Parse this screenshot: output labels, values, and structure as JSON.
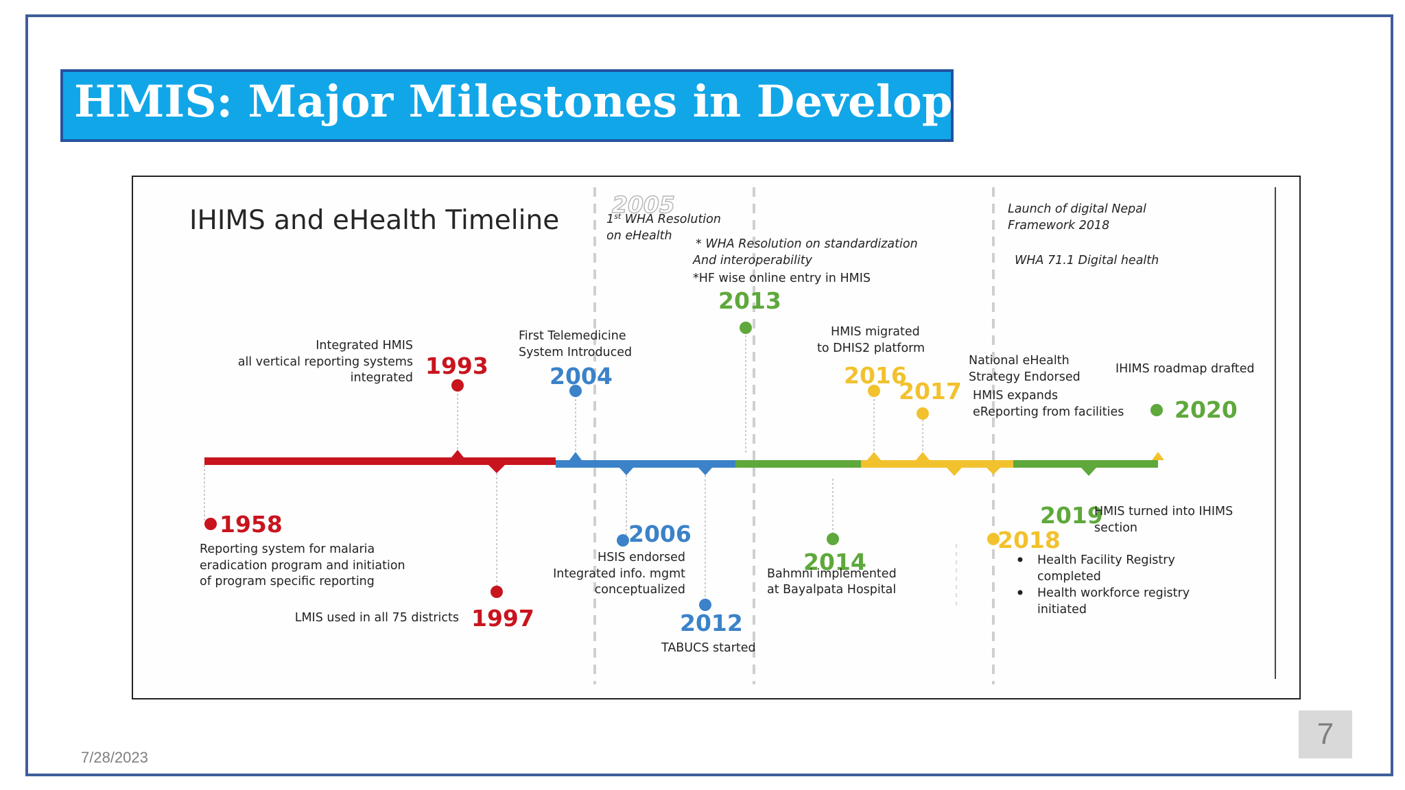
{
  "title": "HMIS: Major Milestones in Development",
  "date": "7/28/2023",
  "page_number": "7",
  "timeline": {
    "heading": "IHIMS and eHealth Timeline",
    "colors": {
      "red": "#c8141e",
      "blue": "#3b82c8",
      "green": "#5ea83c",
      "yellow": "#f2c12e",
      "ghost": "#cfcfcf"
    },
    "milestones": {
      "y1958": {
        "year": "1958",
        "lines": [
          "Reporting system for malaria",
          "eradication program and initiation",
          "of program specific reporting"
        ]
      },
      "y1993": {
        "year": "1993",
        "lines": [
          "Integrated HMIS",
          "all vertical reporting systems",
          "integrated"
        ]
      },
      "y1997": {
        "year": "1997",
        "lines": [
          "LMIS used in all 75 districts"
        ]
      },
      "y2004": {
        "year": "2004",
        "lines": [
          "First Telemedicine",
          "System Introduced"
        ]
      },
      "y2005": {
        "year": "2005",
        "sup": "st",
        "lines": [
          "1",
          " WHA Resolution",
          "on eHealth"
        ]
      },
      "y2006": {
        "year": "2006",
        "lines": [
          "HSIS endorsed",
          "Integrated info. mgmt",
          "conceptualized"
        ]
      },
      "y2012": {
        "year": "2012",
        "lines": [
          "TABUCS started"
        ]
      },
      "y2013": {
        "year": "2013",
        "lines": [
          "* WHA Resolution on standardization",
          "And interoperability",
          "*HF wise online entry in HMIS"
        ]
      },
      "y2014": {
        "year": "2014",
        "lines": [
          "Bahmni implemented",
          "at Bayalpata Hospital"
        ]
      },
      "y2016": {
        "year": "2016",
        "lines": [
          "HMIS migrated",
          "to DHIS2 platform"
        ]
      },
      "y2017": {
        "year": "2017",
        "lines": [
          "National eHealth",
          "Strategy Endorsed",
          "HMIS expands",
          "eReporting from facilities"
        ]
      },
      "y2018": {
        "year": "2018",
        "lines": [
          "Health Facility Registry",
          "completed",
          "Health workforce registry",
          "initiated"
        ],
        "top_lines": [
          "Launch of digital Nepal",
          "Framework 2018",
          "WHA 71.1 Digital health"
        ]
      },
      "y2019": {
        "year": "2019",
        "lines": [
          "HMIS turned into IHIMS",
          "section"
        ]
      },
      "y2020": {
        "year": "2020",
        "lines": [
          "IHIMS roadmap drafted"
        ]
      }
    }
  }
}
